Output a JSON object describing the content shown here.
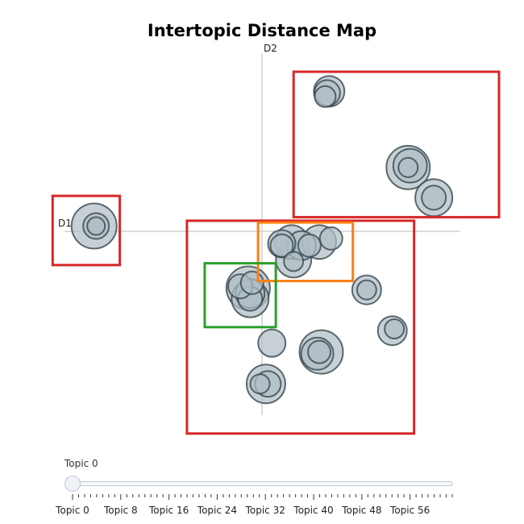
{
  "chart_data": {
    "type": "scatter",
    "title": "Intertopic Distance Map",
    "x_axis_label": "D1",
    "y_axis_label": "D2",
    "xlim": [
      -10,
      10
    ],
    "ylim": [
      -10,
      10
    ],
    "grid": false,
    "bubbles": [
      {
        "x": 3.4,
        "y": 7.9,
        "size": 19
      },
      {
        "x": 3.3,
        "y": 7.8,
        "size": 16
      },
      {
        "x": 3.2,
        "y": 7.6,
        "size": 13
      },
      {
        "x": 7.4,
        "y": 3.6,
        "size": 27
      },
      {
        "x": 7.5,
        "y": 3.7,
        "size": 21
      },
      {
        "x": 7.4,
        "y": 3.6,
        "size": 12
      },
      {
        "x": 8.7,
        "y": 1.9,
        "size": 23
      },
      {
        "x": 8.7,
        "y": 1.9,
        "size": 15
      },
      {
        "x": -8.5,
        "y": 0.3,
        "size": 28
      },
      {
        "x": -8.4,
        "y": 0.3,
        "size": 16
      },
      {
        "x": -8.4,
        "y": 0.3,
        "size": 11
      },
      {
        "x": 1.5,
        "y": -0.6,
        "size": 21
      },
      {
        "x": 2.9,
        "y": -0.6,
        "size": 21
      },
      {
        "x": 1.0,
        "y": -0.7,
        "size": 17
      },
      {
        "x": 2.0,
        "y": -0.8,
        "size": 18
      },
      {
        "x": 3.5,
        "y": -0.4,
        "size": 14
      },
      {
        "x": 2.4,
        "y": -0.8,
        "size": 14
      },
      {
        "x": 1.6,
        "y": -1.6,
        "size": 22
      },
      {
        "x": 1.6,
        "y": -1.7,
        "size": 12
      },
      {
        "x": 1.0,
        "y": -0.8,
        "size": 14
      },
      {
        "x": -0.7,
        "y": -3.2,
        "size": 27
      },
      {
        "x": -0.6,
        "y": -3.8,
        "size": 23
      },
      {
        "x": -0.6,
        "y": -3.5,
        "size": 18
      },
      {
        "x": -0.6,
        "y": -3.8,
        "size": 15
      },
      {
        "x": -1.1,
        "y": -3.1,
        "size": 15
      },
      {
        "x": -0.5,
        "y": -2.9,
        "size": 14
      },
      {
        "x": 5.3,
        "y": -3.3,
        "size": 18
      },
      {
        "x": 5.3,
        "y": -3.3,
        "size": 12
      },
      {
        "x": 6.6,
        "y": -5.6,
        "size": 18
      },
      {
        "x": 6.7,
        "y": -5.5,
        "size": 12
      },
      {
        "x": 0.5,
        "y": -6.3,
        "size": 17
      },
      {
        "x": 3.0,
        "y": -6.8,
        "size": 27
      },
      {
        "x": 2.8,
        "y": -6.9,
        "size": 20
      },
      {
        "x": 2.9,
        "y": -6.8,
        "size": 14
      },
      {
        "x": 0.2,
        "y": -8.6,
        "size": 24
      },
      {
        "x": 0.3,
        "y": -8.6,
        "size": 16
      },
      {
        "x": -0.1,
        "y": -8.6,
        "size": 12
      }
    ],
    "highlight_boxes": [
      {
        "color": "#d62728",
        "x0": 1.6,
        "x1": 12.0,
        "y0": 0.8,
        "y1": 9.0
      },
      {
        "color": "#d62728",
        "x0": -10.6,
        "x1": -7.2,
        "y0": -1.9,
        "y1": 2.0
      },
      {
        "color": "#d62728",
        "x0": -3.8,
        "x1": 7.7,
        "y0": -11.4,
        "y1": 0.6
      },
      {
        "color": "#ff7f0e",
        "x0": -0.2,
        "x1": 4.6,
        "y0": -2.8,
        "y1": 0.5
      },
      {
        "color": "#2ca02c",
        "x0": -2.9,
        "x1": 0.7,
        "y0": -5.4,
        "y1": -1.8
      }
    ],
    "slider": {
      "current_label": "Topic 0",
      "value": 0,
      "min": 0,
      "max": 63,
      "tick_labels": [
        "Topic 0",
        "Topic 8",
        "Topic 16",
        "Topic 24",
        "Topic 32",
        "Topic 40",
        "Topic 48",
        "Topic 56"
      ]
    }
  },
  "colors": {
    "bubble_fill": "#b0bec5",
    "bubble_stroke": "#37474f",
    "slider_handle": "#f0f2f7",
    "slider_track": "#bec8d9"
  }
}
